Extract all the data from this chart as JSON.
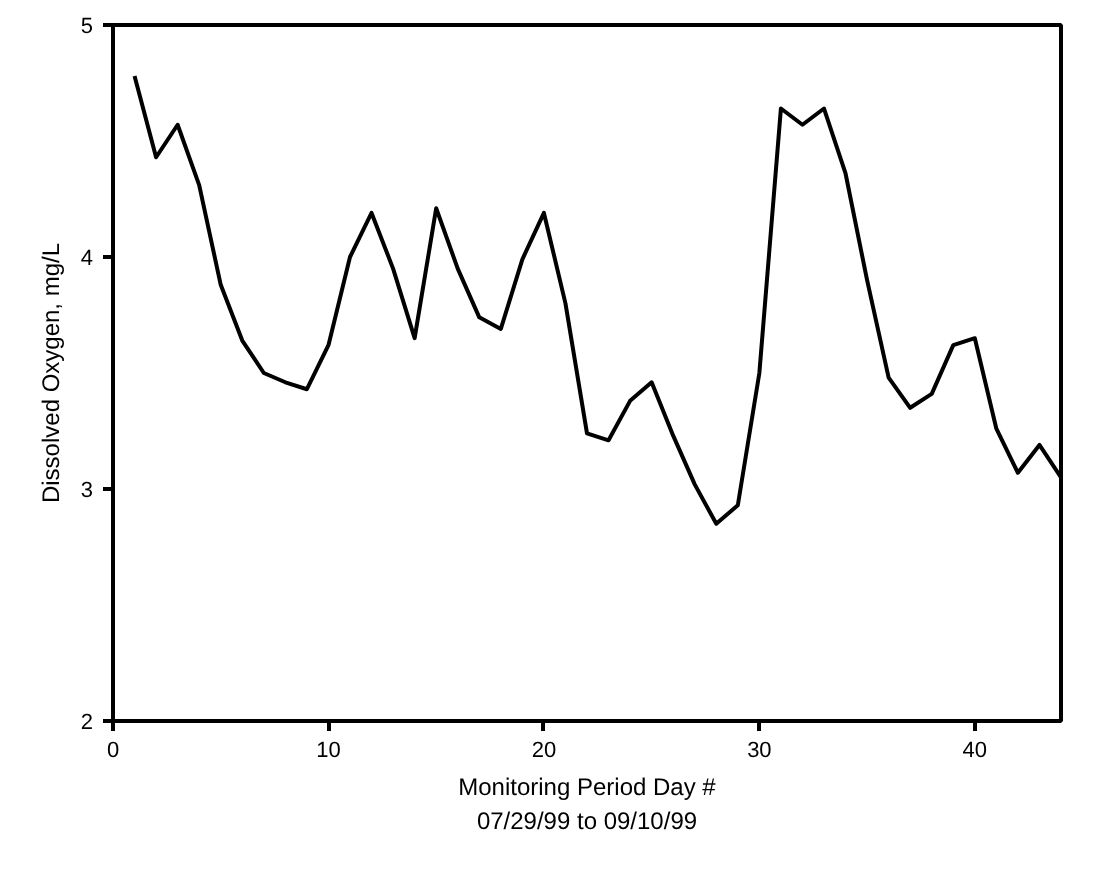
{
  "chart_data": {
    "type": "line",
    "xlabel": "Monitoring Period Day #\n07/29/99 to 09/10/99",
    "ylabel": "Dissolved Oxygen, mg/L",
    "x": [
      1,
      2,
      3,
      4,
      5,
      6,
      7,
      8,
      9,
      10,
      11,
      12,
      13,
      14,
      15,
      16,
      17,
      18,
      19,
      20,
      21,
      22,
      23,
      24,
      25,
      26,
      27,
      28,
      29,
      30,
      31,
      32,
      33,
      34,
      35,
      36,
      37,
      38,
      39,
      40,
      41,
      42,
      43,
      44
    ],
    "series": [
      {
        "color": "#000000",
        "values": [
          4.78,
          4.43,
          4.57,
          4.31,
          3.88,
          3.64,
          3.5,
          3.46,
          3.43,
          3.62,
          4.0,
          4.19,
          3.95,
          3.65,
          4.21,
          3.95,
          3.74,
          3.69,
          3.99,
          4.19,
          3.8,
          3.24,
          3.21,
          3.38,
          3.46,
          3.23,
          3.02,
          2.85,
          2.93,
          3.5,
          4.64,
          4.57,
          4.64,
          4.36,
          3.9,
          3.48,
          3.35,
          3.41,
          3.62,
          3.65,
          3.26,
          3.07,
          3.19,
          3.05
        ]
      }
    ],
    "xlim": [
      0,
      44
    ],
    "ylim": [
      2,
      5
    ],
    "xticks": [
      0,
      10,
      20,
      30,
      40
    ],
    "yticks": [
      2,
      3,
      4,
      5
    ],
    "grid": false,
    "marker": "none",
    "line_style": "solid"
  }
}
